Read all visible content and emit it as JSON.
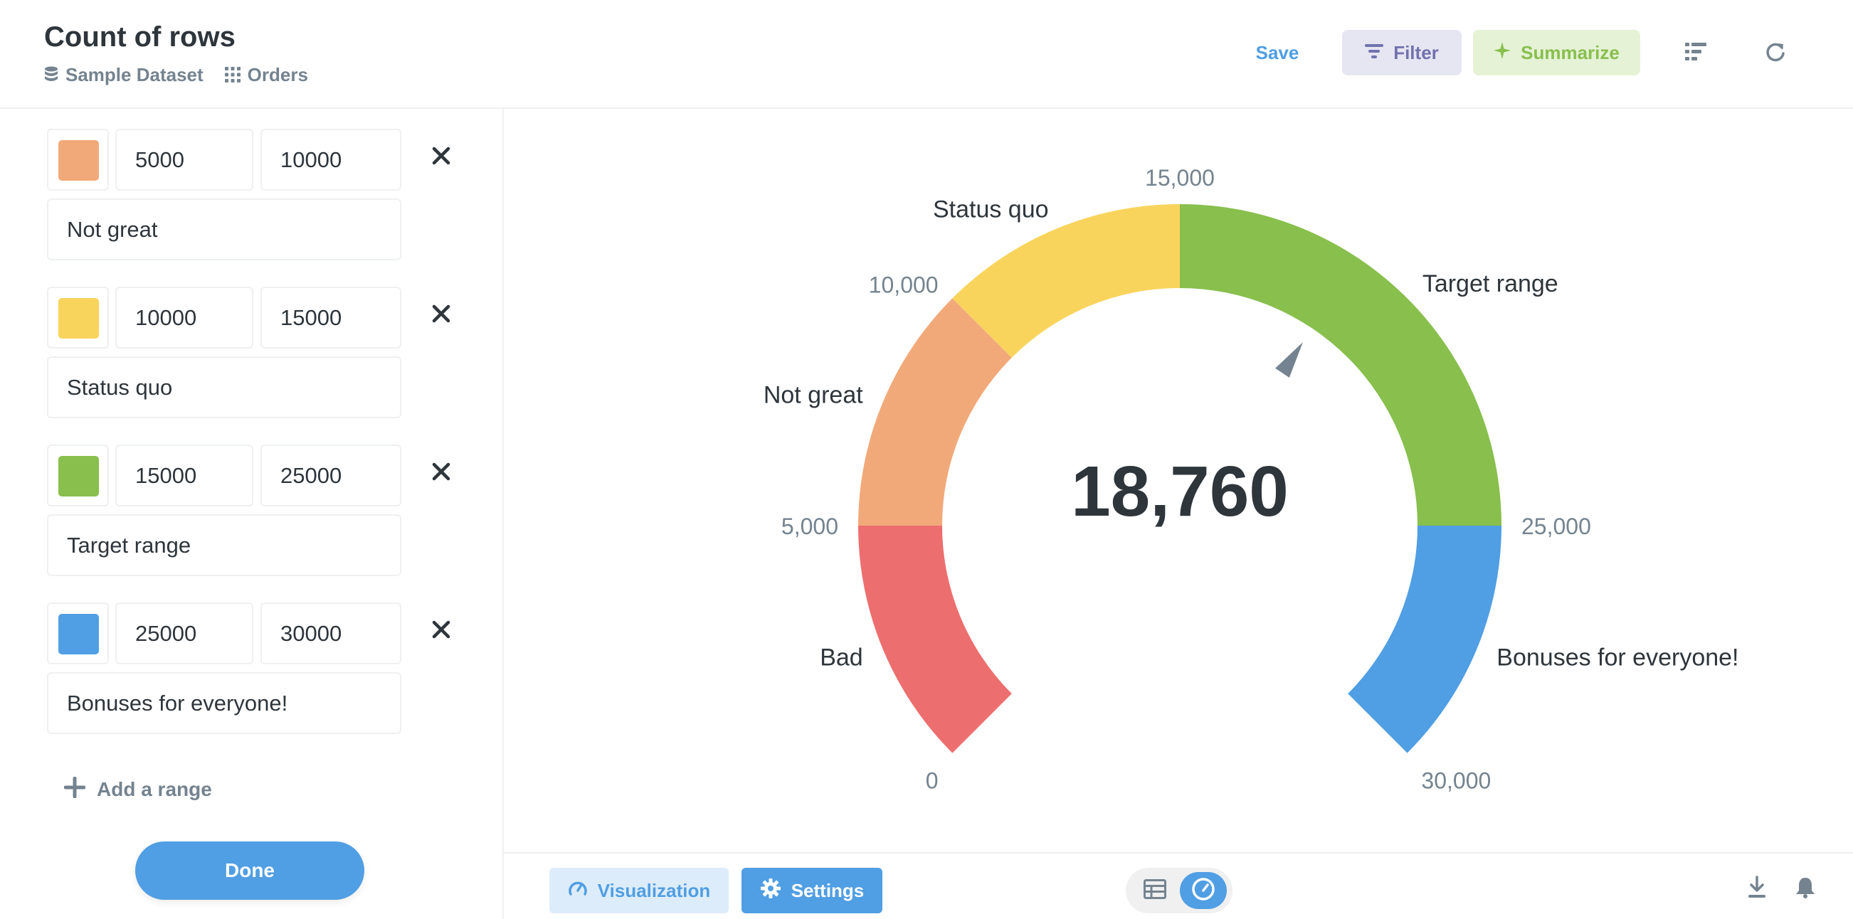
{
  "header": {
    "title": "Count of rows",
    "breadcrumbs": [
      {
        "label": "Sample Dataset",
        "icon": "database-icon"
      },
      {
        "label": "Orders",
        "icon": "grid-icon"
      }
    ],
    "save_label": "Save",
    "filter_label": "Filter",
    "summarize_label": "Summarize",
    "icons": [
      "notebook-icon",
      "refresh-icon"
    ],
    "colors": {
      "filter": "#7172ad",
      "summarize": "#88bf4d",
      "accent": "#509ee3"
    }
  },
  "sidebar": {
    "ranges": [
      {
        "color": "#f2a97a",
        "min": "5000",
        "max": "10000",
        "label": "Not great"
      },
      {
        "color": "#f9d45c",
        "min": "10000",
        "max": "15000",
        "label": "Status quo"
      },
      {
        "color": "#88bf4d",
        "min": "15000",
        "max": "25000",
        "label": "Target range"
      },
      {
        "color": "#509ee3",
        "min": "25000",
        "max": "30000",
        "label": "Bonuses for everyone!"
      }
    ],
    "add_range_label": "Add a range",
    "done_label": "Done"
  },
  "chart_data": {
    "type": "gauge",
    "value": 18760,
    "value_label": "18,760",
    "min": 0,
    "max": 30000,
    "segments": [
      {
        "min": 0,
        "max": 5000,
        "label": "Bad",
        "color": "#ed6e6e"
      },
      {
        "min": 5000,
        "max": 10000,
        "label": "Not great",
        "color": "#f2a97a"
      },
      {
        "min": 10000,
        "max": 15000,
        "label": "Status quo",
        "color": "#f9d45c"
      },
      {
        "min": 15000,
        "max": 25000,
        "label": "Target range",
        "color": "#88bf4d"
      },
      {
        "min": 25000,
        "max": 30000,
        "label": "Bonuses for everyone!",
        "color": "#509ee3"
      }
    ],
    "tick_labels": [
      {
        "value": 0,
        "label": "0"
      },
      {
        "value": 5000,
        "label": "5,000"
      },
      {
        "value": 10000,
        "label": "10,000"
      },
      {
        "value": 15000,
        "label": "15,000"
      },
      {
        "value": 25000,
        "label": "25,000"
      },
      {
        "value": 30000,
        "label": "30,000"
      }
    ],
    "needle_color": "#74838f"
  },
  "footer": {
    "visualization_label": "Visualization",
    "settings_label": "Settings",
    "icons": [
      "table-icon",
      "gauge-icon",
      "download-icon",
      "bell-icon"
    ]
  }
}
